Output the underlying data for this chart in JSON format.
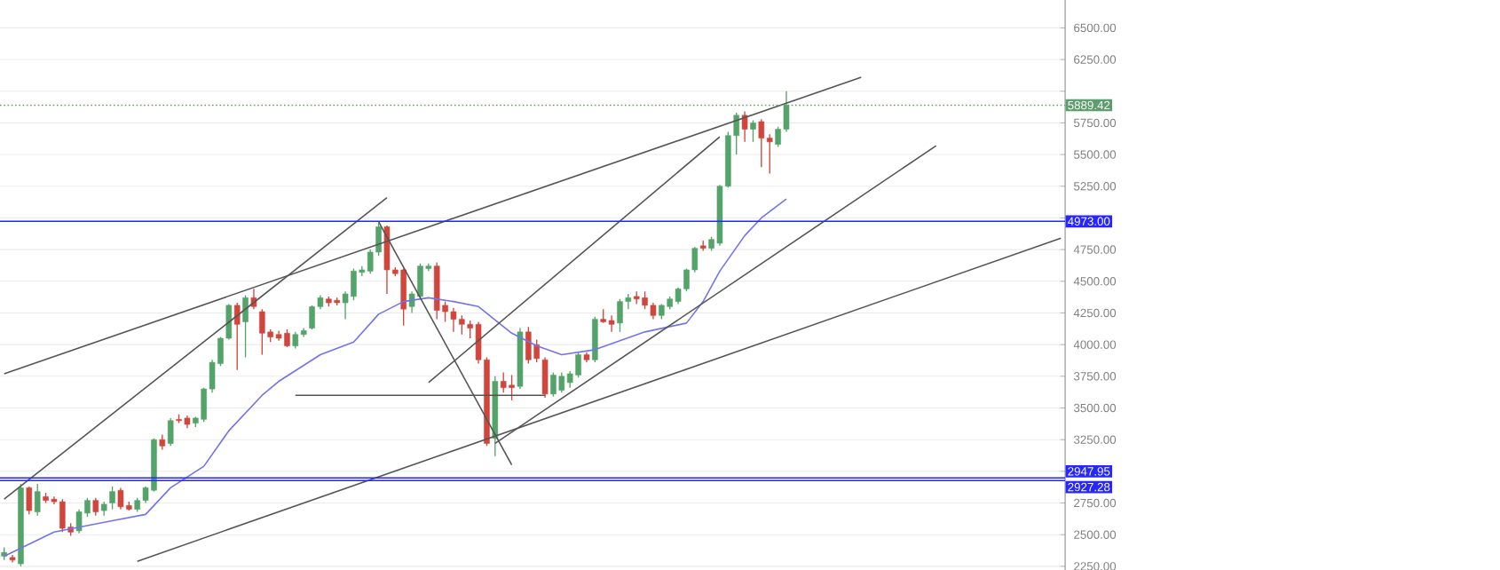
{
  "chart_data": {
    "type": "candlestick",
    "categories": [
      null,
      null,
      null,
      null,
      null,
      null,
      null,
      null,
      null,
      null,
      null,
      null,
      null,
      null,
      null,
      null,
      null,
      null,
      null,
      null,
      null,
      null,
      null,
      null,
      null,
      null,
      null,
      null,
      null,
      null,
      null,
      null,
      null,
      null,
      null,
      null,
      null,
      null,
      null,
      null,
      null,
      null,
      null,
      null,
      null,
      null,
      null,
      null,
      null,
      null,
      null,
      null,
      null,
      null,
      null,
      null,
      null,
      null,
      null,
      null,
      null,
      null,
      null,
      null,
      null,
      null,
      null,
      null,
      null,
      null,
      null,
      null,
      null,
      null,
      null,
      null,
      null,
      null,
      null,
      null,
      null,
      null,
      null,
      null,
      null,
      null,
      null,
      null,
      null,
      null,
      null,
      null,
      null,
      null,
      null,
      null,
      null,
      null,
      null,
      null,
      null,
      null,
      null,
      null,
      null,
      null,
      null,
      null,
      null,
      null,
      null,
      null,
      null,
      null,
      null,
      null,
      null,
      null,
      null,
      null,
      null,
      null,
      null,
      null,
      null,
      null,
      null,
      null
    ],
    "ohlc": [
      [
        2330,
        2400,
        2300,
        2360
      ],
      [
        2320,
        2340,
        2280,
        2300
      ],
      [
        2270,
        2900,
        2250,
        2870
      ],
      [
        2870,
        2880,
        2660,
        2690
      ],
      [
        2680,
        2900,
        2650,
        2840
      ],
      [
        2800,
        2830,
        2750,
        2770
      ],
      [
        2780,
        2800,
        2740,
        2760
      ],
      [
        2760,
        2780,
        2520,
        2550
      ],
      [
        2560,
        2590,
        2490,
        2520
      ],
      [
        2530,
        2700,
        2510,
        2680
      ],
      [
        2670,
        2790,
        2640,
        2770
      ],
      [
        2770,
        2790,
        2650,
        2680
      ],
      [
        2690,
        2760,
        2650,
        2740
      ],
      [
        2750,
        2880,
        2700,
        2840
      ],
      [
        2850,
        2870,
        2700,
        2720
      ],
      [
        2730,
        2760,
        2690,
        2700
      ],
      [
        2700,
        2790,
        2680,
        2770
      ],
      [
        2770,
        2880,
        2750,
        2870
      ],
      [
        2850,
        3260,
        2840,
        3250
      ],
      [
        3250,
        3290,
        3170,
        3200
      ],
      [
        3220,
        3420,
        3200,
        3400
      ],
      [
        3410,
        3450,
        3380,
        3400
      ],
      [
        3420,
        3440,
        3340,
        3370
      ],
      [
        3380,
        3430,
        3350,
        3420
      ],
      [
        3410,
        3660,
        3390,
        3650
      ],
      [
        3650,
        3880,
        3620,
        3860
      ],
      [
        3850,
        4060,
        3830,
        4050
      ],
      [
        4050,
        4320,
        4040,
        4310
      ],
      [
        4310,
        4330,
        3800,
        4160
      ],
      [
        4180,
        4390,
        3900,
        4370
      ],
      [
        4370,
        4440,
        4280,
        4300
      ],
      [
        4260,
        4280,
        3920,
        4090
      ],
      [
        4100,
        4120,
        4020,
        4060
      ],
      [
        4080,
        4110,
        4030,
        4050
      ],
      [
        4090,
        4120,
        3980,
        3990
      ],
      [
        3990,
        4100,
        3970,
        4080
      ],
      [
        4080,
        4130,
        4060,
        4110
      ],
      [
        4130,
        4310,
        4120,
        4300
      ],
      [
        4300,
        4390,
        4280,
        4370
      ],
      [
        4360,
        4380,
        4300,
        4330
      ],
      [
        4350,
        4370,
        4310,
        4330
      ],
      [
        4330,
        4420,
        4200,
        4400
      ],
      [
        4380,
        4600,
        4350,
        4580
      ],
      [
        4570,
        4620,
        4540,
        4590
      ],
      [
        4580,
        4750,
        4560,
        4730
      ],
      [
        4730,
        4960,
        4700,
        4930
      ],
      [
        4930,
        4940,
        4400,
        4590
      ],
      [
        4590,
        4610,
        4540,
        4560
      ],
      [
        4590,
        4600,
        4150,
        4280
      ],
      [
        4300,
        4420,
        4250,
        4400
      ],
      [
        4380,
        4640,
        4370,
        4620
      ],
      [
        4600,
        4640,
        4580,
        4620
      ],
      [
        4620,
        4650,
        4200,
        4270
      ],
      [
        4310,
        4340,
        4180,
        4260
      ],
      [
        4260,
        4290,
        4100,
        4200
      ],
      [
        4200,
        4230,
        4080,
        4160
      ],
      [
        4160,
        4190,
        4050,
        4130
      ],
      [
        4160,
        4180,
        3850,
        3880
      ],
      [
        3880,
        3900,
        3200,
        3220
      ],
      [
        3260,
        3750,
        3120,
        3710
      ],
      [
        3710,
        3780,
        3620,
        3660
      ],
      [
        3680,
        3760,
        3560,
        3660
      ],
      [
        3670,
        4130,
        3650,
        4100
      ],
      [
        4100,
        4140,
        3850,
        3880
      ],
      [
        4000,
        4040,
        3860,
        3890
      ],
      [
        3880,
        3900,
        3580,
        3610
      ],
      [
        3610,
        3780,
        3590,
        3760
      ],
      [
        3640,
        3780,
        3620,
        3750
      ],
      [
        3700,
        3790,
        3660,
        3770
      ],
      [
        3760,
        3940,
        3740,
        3920
      ],
      [
        3920,
        3940,
        3860,
        3880
      ],
      [
        3880,
        4220,
        3860,
        4200
      ],
      [
        4200,
        4280,
        4170,
        4180
      ],
      [
        4190,
        4230,
        4100,
        4160
      ],
      [
        4170,
        4360,
        4100,
        4340
      ],
      [
        4340,
        4400,
        4280,
        4370
      ],
      [
        4380,
        4420,
        4320,
        4360
      ],
      [
        4370,
        4420,
        4280,
        4310
      ],
      [
        4310,
        4330,
        4200,
        4230
      ],
      [
        4230,
        4320,
        4200,
        4310
      ],
      [
        4300,
        4380,
        4280,
        4360
      ],
      [
        4340,
        4450,
        4320,
        4440
      ],
      [
        4440,
        4600,
        4420,
        4590
      ],
      [
        4590,
        4770,
        4570,
        4760
      ],
      [
        4780,
        4820,
        4740,
        4760
      ],
      [
        4760,
        4850,
        4740,
        4830
      ],
      [
        4800,
        5260,
        4780,
        5250
      ],
      [
        5250,
        5680,
        5240,
        5650
      ],
      [
        5650,
        5830,
        5500,
        5810
      ],
      [
        5810,
        5840,
        5600,
        5700
      ],
      [
        5700,
        5770,
        5600,
        5750
      ],
      [
        5760,
        5780,
        5400,
        5630
      ],
      [
        5630,
        5660,
        5350,
        5600
      ],
      [
        5580,
        5720,
        5560,
        5700
      ],
      [
        5700,
        6000,
        5680,
        5889.42
      ],
      null,
      null,
      null,
      null,
      null,
      null,
      null,
      null,
      null,
      null,
      null,
      null,
      null,
      null,
      null,
      null,
      null,
      null,
      null,
      null,
      null,
      null,
      null,
      null,
      null,
      null,
      null,
      null,
      null,
      null,
      null,
      null,
      null
    ],
    "colors": [
      "#53a36a",
      "#d0453c",
      "#53a36a",
      "#d0453c",
      "#53a36a",
      "#d0453c",
      "#d0453c",
      "#d0453c",
      "#d0453c",
      "#53a36a",
      "#53a36a",
      "#d0453c",
      "#53a36a",
      "#53a36a",
      "#d0453c",
      "#d0453c",
      "#53a36a",
      "#53a36a",
      "#53a36a",
      "#d0453c",
      "#53a36a",
      "#d0453c",
      "#d0453c",
      "#53a36a",
      "#53a36a",
      "#53a36a",
      "#53a36a",
      "#53a36a",
      "#d0453c",
      "#53a36a",
      "#d0453c",
      "#d0453c",
      "#d0453c",
      "#d0453c",
      "#d0453c",
      "#53a36a",
      "#53a36a",
      "#53a36a",
      "#53a36a",
      "#d0453c",
      "#d0453c",
      "#53a36a",
      "#53a36a",
      "#53a36a",
      "#53a36a",
      "#53a36a",
      "#d0453c",
      "#d0453c",
      "#d0453c",
      "#53a36a",
      "#53a36a",
      "#53a36a",
      "#d0453c",
      "#d0453c",
      "#d0453c",
      "#d0453c",
      "#d0453c",
      "#d0453c",
      "#d0453c",
      "#53a36a",
      "#d0453c",
      "#d0453c",
      "#53a36a",
      "#d0453c",
      "#d0453c",
      "#d0453c",
      "#53a36a",
      "#53a36a",
      "#53a36a",
      "#53a36a",
      "#d0453c",
      "#53a36a",
      "#d0453c",
      "#d0453c",
      "#53a36a",
      "#53a36a",
      "#d0453c",
      "#d0453c",
      "#d0453c",
      "#53a36a",
      "#53a36a",
      "#53a36a",
      "#53a36a",
      "#53a36a",
      "#d0453c",
      "#53a36a",
      "#53a36a",
      "#53a36a",
      "#53a36a",
      "#d0453c",
      "#53a36a",
      "#d0453c",
      "#d0453c",
      "#53a36a",
      "#53a36a",
      null,
      null,
      null,
      null,
      null,
      null,
      null,
      null,
      null,
      null,
      null,
      null,
      null,
      null,
      null,
      null,
      null,
      null,
      null,
      null,
      null,
      null,
      null,
      null,
      null,
      null,
      null,
      null,
      null,
      null,
      null,
      null,
      null
    ],
    "series": [
      {
        "type": "line",
        "color": "#7373f0",
        "values": [
          2330,
          null,
          null,
          null,
          null,
          null,
          2520,
          null,
          null,
          null,
          null,
          null,
          null,
          2610,
          null,
          null,
          null,
          2660,
          null,
          null,
          2870,
          null,
          null,
          null,
          3040,
          null,
          null,
          3320,
          null,
          null,
          null,
          3600,
          null,
          3710,
          null,
          null,
          null,
          null,
          3920,
          null,
          null,
          null,
          4020,
          null,
          null,
          4240,
          null,
          null,
          4340,
          null,
          null,
          4370,
          null,
          null,
          4340,
          null,
          null,
          4300,
          null,
          null,
          null,
          4090,
          null,
          null,
          3990,
          null,
          null,
          3920,
          null,
          null,
          null,
          3960,
          null,
          null,
          null,
          null,
          null,
          4100,
          null,
          null,
          null,
          null,
          4170,
          null,
          4340,
          null,
          4580,
          null,
          null,
          4860,
          null,
          5000,
          null,
          null,
          5150,
          null,
          null,
          null,
          null,
          null,
          null,
          null,
          null,
          null,
          null,
          null,
          null,
          null,
          null,
          null,
          null,
          null,
          null,
          null,
          null,
          null,
          null,
          null,
          null,
          null,
          null,
          null,
          null,
          null,
          null,
          null,
          null,
          null
        ]
      },
      {
        "type": "line",
        "color": "#555555",
        "values": [
          3770,
          null,
          null,
          null,
          null,
          null,
          null,
          null,
          null,
          null,
          null,
          null,
          null,
          null,
          null,
          null,
          null,
          null,
          null,
          null,
          null,
          null,
          null,
          null,
          null,
          null,
          null,
          null,
          null,
          null,
          null,
          null,
          null,
          null,
          null,
          null,
          null,
          null,
          null,
          null,
          null,
          null,
          null,
          null,
          null,
          null,
          null,
          null,
          null,
          null,
          null,
          null,
          null,
          null,
          null,
          null,
          null,
          null,
          null,
          null,
          null,
          null,
          null,
          null,
          null,
          null,
          null,
          null,
          null,
          null,
          null,
          null,
          null,
          null,
          null,
          null,
          null,
          null,
          null,
          null,
          null,
          null,
          null,
          null,
          null,
          null,
          null,
          null,
          null,
          null,
          null,
          null,
          null,
          null,
          null,
          null,
          null,
          null,
          null,
          null,
          null,
          null,
          null,
          6110,
          null,
          null,
          null,
          null,
          null,
          null,
          null,
          null,
          null,
          null,
          null,
          null,
          null,
          null,
          null,
          null,
          null,
          null,
          null,
          null,
          null,
          null,
          null,
          null
        ]
      },
      {
        "type": "line",
        "color": "#555555",
        "values": [
          null,
          null,
          null,
          null,
          null,
          null,
          null,
          null,
          null,
          null,
          null,
          null,
          null,
          null,
          null,
          null,
          2290,
          null,
          null,
          null,
          null,
          null,
          null,
          null,
          null,
          null,
          null,
          null,
          null,
          null,
          null,
          null,
          null,
          null,
          null,
          null,
          null,
          null,
          null,
          null,
          null,
          null,
          null,
          null,
          null,
          null,
          null,
          null,
          null,
          null,
          null,
          null,
          null,
          null,
          null,
          null,
          null,
          null,
          null,
          null,
          null,
          null,
          null,
          null,
          null,
          null,
          null,
          null,
          null,
          null,
          null,
          null,
          null,
          null,
          null,
          null,
          null,
          null,
          null,
          null,
          null,
          null,
          null,
          null,
          null,
          null,
          null,
          null,
          null,
          null,
          null,
          null,
          null,
          null,
          null,
          null,
          null,
          null,
          null,
          null,
          null,
          null,
          null,
          null,
          null,
          null,
          null,
          null,
          null,
          null,
          null,
          null,
          null,
          null,
          null,
          null,
          null,
          null,
          null,
          null,
          null,
          null,
          null,
          null,
          null,
          null,
          null,
          4840
        ]
      },
      {
        "type": "line",
        "color": "#555555",
        "values": [
          null,
          null,
          null,
          null,
          null,
          null,
          null,
          null,
          null,
          null,
          null,
          null,
          null,
          null,
          null,
          null,
          null,
          null,
          null,
          null,
          null,
          null,
          null,
          null,
          null,
          null,
          null,
          null,
          null,
          null,
          null,
          null,
          null,
          null,
          null,
          null,
          null,
          null,
          null,
          null,
          null,
          null,
          null,
          null,
          null,
          null,
          null,
          null,
          null,
          null,
          null,
          null,
          null,
          null,
          null,
          null,
          null,
          null,
          null,
          3220,
          null,
          null,
          null,
          null,
          null,
          null,
          null,
          null,
          null,
          null,
          null,
          null,
          null,
          null,
          null,
          null,
          null,
          null,
          null,
          null,
          null,
          null,
          null,
          null,
          null,
          null,
          null,
          null,
          null,
          null,
          null,
          null,
          null,
          null,
          null,
          null,
          null,
          null,
          null,
          null,
          null,
          null,
          null,
          null,
          null,
          null,
          null,
          null,
          null,
          null,
          null,
          null,
          5570,
          null,
          null,
          null,
          null,
          null,
          null,
          null,
          null,
          null,
          null,
          null,
          null,
          null,
          null,
          null
        ]
      },
      {
        "type": "line",
        "color": "#555555",
        "values": [
          2780,
          null,
          null,
          null,
          null,
          null,
          null,
          null,
          null,
          null,
          null,
          null,
          null,
          null,
          null,
          null,
          null,
          null,
          null,
          null,
          null,
          null,
          null,
          null,
          null,
          null,
          null,
          null,
          null,
          null,
          null,
          null,
          null,
          null,
          null,
          null,
          null,
          null,
          null,
          null,
          null,
          null,
          null,
          null,
          null,
          null,
          5160,
          null,
          null,
          null,
          null,
          null,
          null,
          null,
          null,
          null,
          null,
          null,
          null,
          null,
          null,
          null,
          null,
          null,
          null,
          null,
          null,
          null,
          null,
          null,
          null,
          null,
          null,
          null,
          null,
          null,
          null,
          null,
          null,
          null,
          null,
          null,
          null,
          null,
          null,
          null,
          null,
          null,
          null,
          null,
          null,
          null,
          null,
          null,
          null,
          null,
          null,
          null,
          null,
          null,
          null,
          null,
          null,
          null,
          null,
          null,
          null,
          null,
          null,
          null,
          null,
          null,
          null,
          null,
          null,
          null,
          null,
          null,
          null,
          null,
          null,
          null,
          null,
          null,
          null,
          null,
          null,
          null
        ]
      },
      {
        "type": "line",
        "color": "#555555",
        "values": [
          null,
          null,
          null,
          null,
          null,
          null,
          null,
          null,
          null,
          null,
          null,
          null,
          null,
          null,
          null,
          null,
          null,
          null,
          null,
          null,
          null,
          null,
          null,
          null,
          null,
          null,
          null,
          null,
          null,
          null,
          null,
          null,
          null,
          null,
          null,
          null,
          null,
          null,
          null,
          null,
          null,
          null,
          null,
          null,
          null,
          4970,
          null,
          null,
          null,
          null,
          null,
          null,
          null,
          null,
          null,
          null,
          null,
          null,
          null,
          null,
          null,
          3050,
          null,
          null,
          null,
          null,
          null,
          null,
          null,
          null,
          null,
          null,
          null,
          null,
          null,
          null,
          null,
          null,
          null,
          null,
          null,
          null,
          null,
          null,
          null,
          null,
          null,
          null,
          null,
          null,
          null,
          null,
          null,
          null,
          null,
          null,
          null,
          null,
          null,
          null,
          null,
          null,
          null,
          null,
          null,
          null,
          null,
          null,
          null,
          null,
          null,
          null,
          null,
          null,
          null,
          null,
          null,
          null,
          null,
          null,
          null,
          null,
          null,
          null,
          null,
          null,
          null,
          null
        ]
      },
      {
        "type": "line",
        "color": "#555555",
        "values": [
          null,
          null,
          null,
          null,
          null,
          null,
          null,
          null,
          null,
          null,
          null,
          null,
          null,
          null,
          null,
          null,
          null,
          null,
          null,
          null,
          null,
          null,
          null,
          null,
          null,
          null,
          null,
          null,
          null,
          null,
          null,
          null,
          null,
          null,
          null,
          null,
          null,
          null,
          null,
          null,
          null,
          null,
          null,
          null,
          null,
          null,
          null,
          null,
          null,
          null,
          null,
          3700,
          null,
          null,
          null,
          null,
          null,
          null,
          null,
          null,
          null,
          null,
          null,
          null,
          null,
          null,
          null,
          null,
          null,
          null,
          null,
          null,
          null,
          null,
          null,
          null,
          null,
          null,
          null,
          null,
          null,
          null,
          null,
          null,
          null,
          null,
          5640,
          null,
          null,
          null,
          null,
          null,
          null,
          null,
          null,
          null,
          null,
          null,
          null,
          null,
          null,
          null,
          null,
          null,
          null,
          null,
          null,
          null,
          null,
          null,
          null,
          null,
          null,
          null,
          null,
          null,
          null,
          null,
          null,
          null,
          null,
          null,
          null,
          null,
          null,
          null,
          null,
          null
        ]
      },
      {
        "type": "line",
        "color": "#555555",
        "values": [
          null,
          null,
          null,
          null,
          null,
          null,
          null,
          null,
          null,
          null,
          null,
          null,
          null,
          null,
          null,
          null,
          null,
          null,
          null,
          null,
          null,
          null,
          null,
          null,
          null,
          null,
          null,
          null,
          null,
          null,
          null,
          null,
          null,
          null,
          null,
          3600,
          null,
          null,
          null,
          null,
          null,
          null,
          null,
          null,
          null,
          null,
          null,
          null,
          null,
          null,
          null,
          null,
          null,
          null,
          null,
          null,
          null,
          null,
          null,
          null,
          null,
          null,
          null,
          null,
          null,
          3600,
          null,
          null,
          null,
          null,
          null,
          null,
          null,
          null,
          null,
          null,
          null,
          null,
          null,
          null,
          null,
          null,
          null,
          null,
          null,
          null,
          null,
          null,
          null,
          null,
          null,
          null,
          null,
          null,
          null,
          null,
          null,
          null,
          null,
          null,
          null,
          null,
          null,
          null,
          null,
          null,
          null,
          null,
          null,
          null,
          null,
          null,
          null,
          null,
          null,
          null,
          null,
          null,
          null,
          null,
          null,
          null,
          null,
          null,
          null,
          null,
          null,
          null
        ]
      }
    ],
    "ylim": [
      2221,
      6720
    ],
    "yticks": [
      {
        "value": 2250,
        "label": "2250.00"
      },
      {
        "value": 2500,
        "label": "2500.00"
      },
      {
        "value": 2750,
        "label": "2750.00"
      },
      {
        "value": 3000,
        "label": null
      },
      {
        "value": 3250,
        "label": "3250.00"
      },
      {
        "value": 3500,
        "label": "3500.00"
      },
      {
        "value": 3750,
        "label": "3750.00"
      },
      {
        "value": 4000,
        "label": "4000.00"
      },
      {
        "value": 4250,
        "label": "4250.00"
      },
      {
        "value": 4500,
        "label": "4500.00"
      },
      {
        "value": 4750,
        "label": "4750.00"
      },
      {
        "value": 5000,
        "label": null
      },
      {
        "value": 5250,
        "label": "5250.00"
      },
      {
        "value": 5500,
        "label": "5500.00"
      },
      {
        "value": 5750,
        "label": "5750.00"
      },
      {
        "value": 6000,
        "label": null
      },
      {
        "value": 6250,
        "label": "6250.00"
      },
      {
        "value": 6500,
        "label": "6500.00"
      }
    ],
    "ref_lines": [
      {
        "axis": "y",
        "value": 5889.42,
        "label": "5889.42",
        "color": "#5e9e6e",
        "line_style": "dotted"
      },
      {
        "axis": "y",
        "value": 4973,
        "label": "4973.00",
        "color": "#2626ff"
      },
      {
        "axis": "y",
        "value": 2947.95,
        "label": "2947.95",
        "color": "#2626ff"
      },
      {
        "axis": "y",
        "value": 2927.28,
        "label": "2927.28",
        "color": "#2626ff"
      }
    ],
    "grid": true
  }
}
